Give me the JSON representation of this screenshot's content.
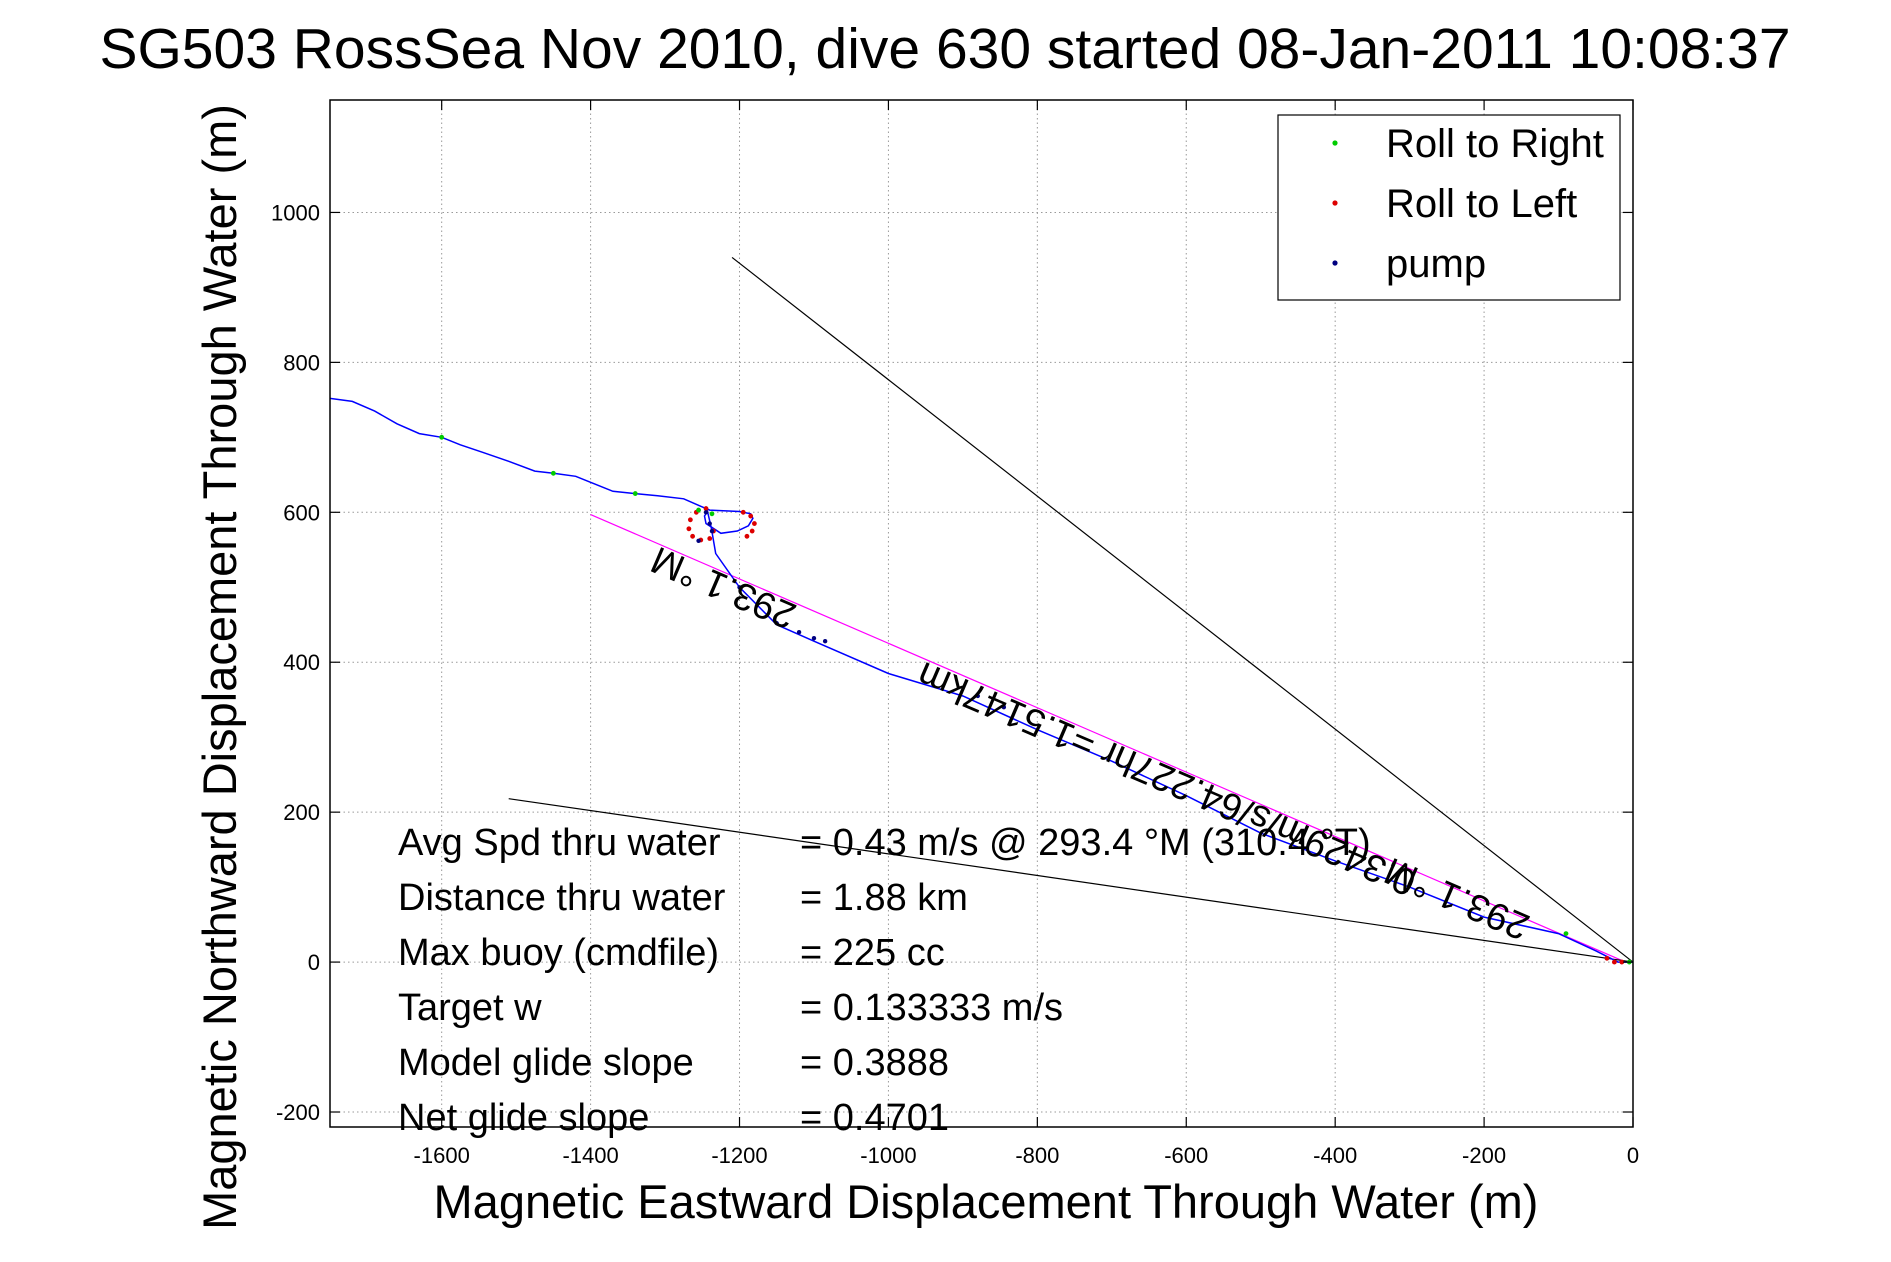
{
  "chart_data": {
    "type": "line",
    "title": "SG503 RossSea Nov 2010, dive 630 started 08-Jan-2011 10:08:37",
    "xlabel": "Magnetic Eastward Displacement Through Water (m)",
    "ylabel": "Magnetic Northward Displacement Through Water (m)",
    "xlim": [
      -1750,
      0
    ],
    "ylim": [
      -220,
      1150
    ],
    "x_ticks": [
      -1600,
      -1400,
      -1200,
      -1000,
      -800,
      -600,
      -400,
      -200,
      0
    ],
    "y_ticks": [
      -200,
      0,
      200,
      400,
      600,
      800,
      1000
    ],
    "grid": true,
    "legend_position": "top-right",
    "legend": [
      {
        "label": "Roll to Right",
        "color": "#00cc00"
      },
      {
        "label": "Roll to Left",
        "color": "#dd0000"
      },
      {
        "label": "pump",
        "color": "#000080"
      }
    ],
    "track": {
      "color": "#0000ff",
      "points": [
        [
          -1750,
          752
        ],
        [
          -1720,
          748
        ],
        [
          -1690,
          735
        ],
        [
          -1660,
          718
        ],
        [
          -1630,
          705
        ],
        [
          -1600,
          700
        ],
        [
          -1575,
          690
        ],
        [
          -1545,
          680
        ],
        [
          -1510,
          668
        ],
        [
          -1475,
          655
        ],
        [
          -1450,
          652
        ],
        [
          -1420,
          648
        ],
        [
          -1395,
          638
        ],
        [
          -1370,
          628
        ],
        [
          -1340,
          625
        ],
        [
          -1310,
          622
        ],
        [
          -1275,
          618
        ],
        [
          -1252,
          608
        ],
        [
          -1240,
          603
        ],
        [
          -1200,
          601
        ],
        [
          -1185,
          598
        ],
        [
          -1182,
          592
        ],
        [
          -1188,
          582
        ],
        [
          -1203,
          575
        ],
        [
          -1225,
          572
        ],
        [
          -1245,
          585
        ],
        [
          -1247,
          595
        ],
        [
          -1243,
          601
        ],
        [
          -1238,
          580
        ],
        [
          -1232,
          545
        ],
        [
          -1200,
          500
        ],
        [
          -1150,
          450
        ],
        [
          -1100,
          428
        ],
        [
          -1000,
          385
        ],
        [
          -900,
          355
        ],
        [
          -800,
          310
        ],
        [
          -700,
          268
        ],
        [
          -600,
          222
        ],
        [
          -500,
          172
        ],
        [
          -400,
          135
        ],
        [
          -300,
          100
        ],
        [
          -200,
          60
        ],
        [
          -100,
          38
        ],
        [
          -50,
          15
        ],
        [
          -20,
          0
        ],
        [
          0,
          0
        ]
      ]
    },
    "roll_left_markers": [
      [
        -1245,
        605
      ],
      [
        -1258,
        600
      ],
      [
        -1266,
        590
      ],
      [
        -1268,
        578
      ],
      [
        -1263,
        568
      ],
      [
        -1252,
        563
      ],
      [
        -1240,
        565
      ],
      [
        -1235,
        575
      ],
      [
        -1195,
        600
      ],
      [
        -1185,
        595
      ],
      [
        -1180,
        585
      ],
      [
        -1183,
        575
      ],
      [
        -1190,
        568
      ],
      [
        -35,
        5
      ],
      [
        -25,
        0
      ],
      [
        -15,
        0
      ]
    ],
    "roll_right_markers": [
      [
        -1600,
        700
      ],
      [
        -1450,
        652
      ],
      [
        -1340,
        625
      ],
      [
        -1255,
        603
      ],
      [
        -1237,
        598
      ],
      [
        -90,
        38
      ],
      [
        -5,
        0
      ]
    ],
    "pump_markers": [
      [
        -1245,
        600
      ],
      [
        -1240,
        585
      ],
      [
        -1237,
        575
      ],
      [
        -1200,
        500
      ],
      [
        -1150,
        452
      ],
      [
        -1120,
        440
      ],
      [
        -1100,
        432
      ],
      [
        -1085,
        428
      ],
      [
        -880,
        355
      ],
      [
        -845,
        340
      ],
      [
        -1255,
        562
      ]
    ],
    "reference_lines": [
      {
        "name": "heading-line",
        "color": "#ff00ff",
        "from": [
          -1400,
          597
        ],
        "to": [
          -10,
          0
        ]
      },
      {
        "name": "cone-upper-line",
        "color": "#000000",
        "from": [
          -1210,
          940
        ],
        "to": [
          0,
          0
        ]
      },
      {
        "name": "cone-lower-line",
        "color": "#000000",
        "from": [
          -1510,
          218
        ],
        "to": [
          0,
          0
        ]
      }
    ],
    "annotations": [
      {
        "text": "293.1 °M",
        "x": -1215,
        "y": 515,
        "angle": 203.2
      },
      {
        "text": "0.3429m/s/64.227hr =1.5147km",
        "x": -620,
        "y": 260,
        "angle": 203.2
      },
      {
        "text": "293.1 °M",
        "x": -230,
        "y": 100,
        "angle": 203.2
      }
    ],
    "stats": [
      {
        "label": "Avg Spd thru water",
        "value": "=  0.43 m/s @ 293.4 °M (310.4 °T)"
      },
      {
        "label": "Distance thru water",
        "value": "=  1.88 km"
      },
      {
        "label": "Max buoy (cmdfile)",
        "value": "= 225 cc"
      },
      {
        "label": "Target w",
        "value": "= 0.133333 m/s"
      },
      {
        "label": "Model glide slope",
        "value": "= 0.3888"
      },
      {
        "label": "Net glide slope",
        "value": "= 0.4701"
      }
    ]
  }
}
